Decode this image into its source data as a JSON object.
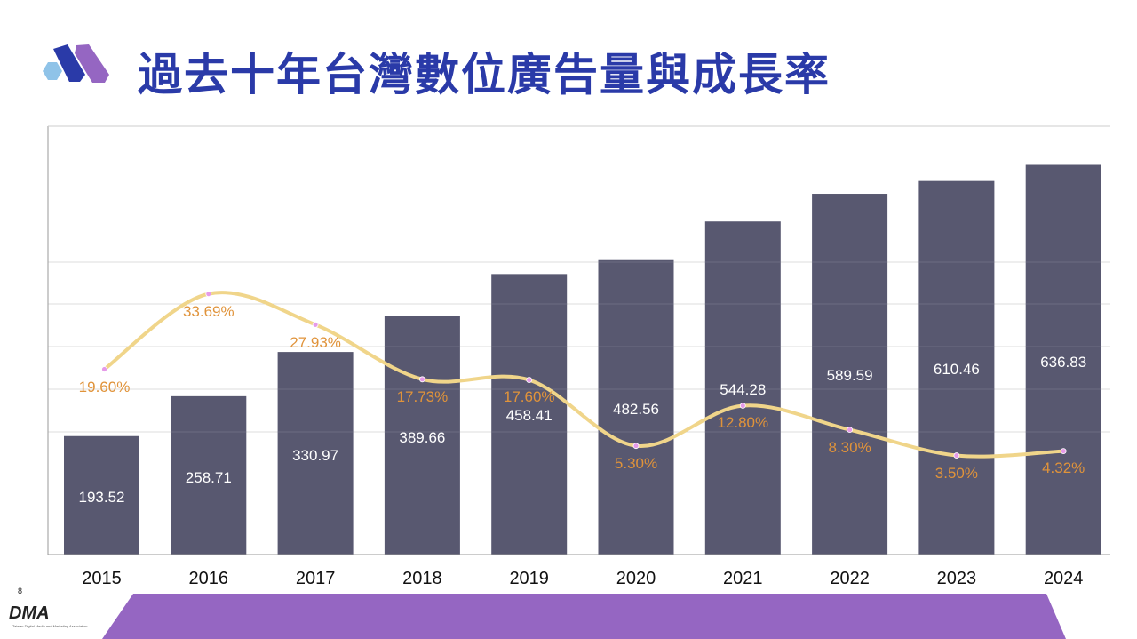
{
  "title": "過去十年台灣數位廣告量與成長率",
  "page_number": "8",
  "footer_logo_text": "DMA",
  "footer_logo_subtitle": "Taiwan Digital Media and Marketing Association",
  "colors": {
    "title": "#2a3aa8",
    "bar": "#585870",
    "line": "#f0d58a",
    "marker": "#e59ae8",
    "percent_label": "#e0933a",
    "band": "#9566c2"
  },
  "chart_data": {
    "type": "bar+line",
    "categories": [
      "2015",
      "2016",
      "2017",
      "2018",
      "2019",
      "2020",
      "2021",
      "2022",
      "2023",
      "2024"
    ],
    "series": [
      {
        "type": "bar",
        "values": [
          193.52,
          258.71,
          330.97,
          389.66,
          458.41,
          482.56,
          544.28,
          589.59,
          610.46,
          636.83
        ],
        "labels": [
          "193.52",
          "258.71",
          "330.97",
          "389.66",
          "458.41",
          "482.56",
          "544.28",
          "589.59",
          "610.46",
          "636.83"
        ]
      },
      {
        "type": "line",
        "axis": "secondary",
        "values": [
          19.6,
          33.69,
          27.93,
          17.73,
          17.6,
          5.3,
          12.8,
          8.3,
          3.5,
          4.32
        ],
        "labels": [
          "19.60%",
          "33.69%",
          "27.93%",
          "17.73%",
          "17.60%",
          "5.30%",
          "12.80%",
          "8.30%",
          "3.50%",
          "4.32%"
        ]
      }
    ],
    "ylim": [
      0,
      700
    ],
    "y2lim": [
      -15,
      65
    ],
    "grid": true,
    "axis_tick_labels_shown": false,
    "legend": "none"
  }
}
